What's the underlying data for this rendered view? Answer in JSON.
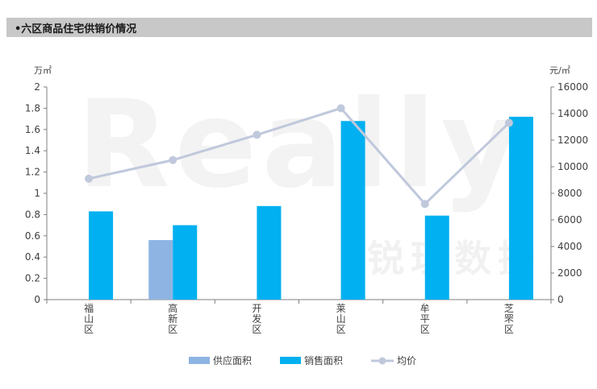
{
  "header": {
    "title": "•六区商品住宅供销价情况"
  },
  "watermark": {
    "main": "Really",
    "sub": "锐理数据"
  },
  "chart_data": {
    "type": "bar",
    "categories": [
      "福山区",
      "高新区",
      "开发区",
      "莱山区",
      "牟平区",
      "芝罘区"
    ],
    "y_left": {
      "unit": "万㎡",
      "ylim": [
        0,
        2
      ],
      "ticks": [
        "0",
        "0.2",
        "0.4",
        "0.6",
        "0.8",
        "1",
        "1.2",
        "1.4",
        "1.6",
        "1.8",
        "2"
      ]
    },
    "y_right": {
      "unit": "元/㎡",
      "ylim": [
        0,
        16000
      ],
      "ticks": [
        "0",
        "2000",
        "4000",
        "6000",
        "8000",
        "10000",
        "12000",
        "14000",
        "16000"
      ]
    },
    "series": [
      {
        "name": "供应面积",
        "type": "bar",
        "axis": "left",
        "color": "#8eb4e3",
        "values": [
          0,
          0.56,
          0,
          0,
          0,
          0
        ]
      },
      {
        "name": "销售面积",
        "type": "bar",
        "axis": "left",
        "color": "#00b0f0",
        "values": [
          0.83,
          0.7,
          0.88,
          1.68,
          0.79,
          1.72
        ]
      },
      {
        "name": "均价",
        "type": "line",
        "axis": "right",
        "color": "#c0c8dc",
        "values": [
          9100,
          10500,
          12400,
          14400,
          7200,
          13300
        ]
      }
    ],
    "legend_position": "bottom",
    "grid": false
  }
}
